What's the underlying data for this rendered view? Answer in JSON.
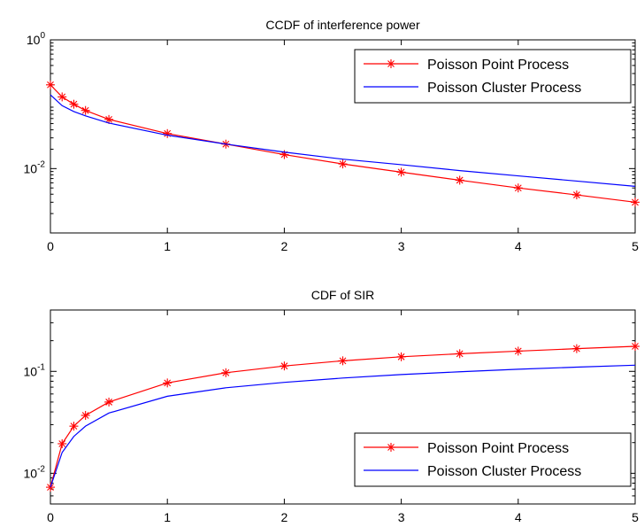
{
  "chart_data": [
    {
      "type": "line",
      "title": "CCDF of interference power",
      "xlabel": "",
      "ylabel": "",
      "xlim": [
        0,
        5
      ],
      "ylim": [
        0.001,
        1
      ],
      "yscale": "log",
      "grid": false,
      "legend_position": "top-right",
      "x_ticks": [
        "0",
        "1",
        "2",
        "3",
        "4",
        "5"
      ],
      "y_ticks": [
        {
          "base": "10",
          "exp": "0",
          "value": 1
        },
        {
          "base": "10",
          "exp": "-2",
          "value": 0.01
        }
      ],
      "series": [
        {
          "name": "Poisson Point Process",
          "color": "#ff0000",
          "marker": "asterisk",
          "x": [
            0,
            0.1,
            0.2,
            0.3,
            0.5,
            1.0,
            1.5,
            2.0,
            2.5,
            3.0,
            3.5,
            4.0,
            4.5,
            5.0
          ],
          "y": [
            0.2,
            0.13,
            0.1,
            0.08,
            0.058,
            0.035,
            0.024,
            0.0165,
            0.0118,
            0.0088,
            0.0066,
            0.005,
            0.0039,
            0.003
          ]
        },
        {
          "name": "Poisson Cluster Process",
          "color": "#0000ff",
          "marker": "none",
          "x": [
            0,
            0.1,
            0.2,
            0.3,
            0.5,
            1.0,
            1.5,
            2.0,
            2.5,
            3.0,
            3.5,
            4.0,
            4.5,
            5.0
          ],
          "y": [
            0.14,
            0.095,
            0.077,
            0.066,
            0.051,
            0.033,
            0.024,
            0.018,
            0.014,
            0.0115,
            0.0093,
            0.0077,
            0.0064,
            0.0053
          ]
        }
      ]
    },
    {
      "type": "line",
      "title": "CDF of SIR",
      "xlabel": "",
      "ylabel": "",
      "xlim": [
        0,
        5
      ],
      "ylim": [
        0.005,
        0.4
      ],
      "yscale": "log",
      "grid": false,
      "legend_position": "bottom-right",
      "x_ticks": [
        "0",
        "1",
        "2",
        "3",
        "4",
        "5"
      ],
      "y_ticks": [
        {
          "base": "10",
          "exp": "-1",
          "value": 0.1
        },
        {
          "base": "10",
          "exp": "-2",
          "value": 0.01
        }
      ],
      "series": [
        {
          "name": "Poisson Point Process",
          "color": "#ff0000",
          "marker": "asterisk",
          "x": [
            0,
            0.1,
            0.2,
            0.3,
            0.5,
            1.0,
            1.5,
            2.0,
            2.5,
            3.0,
            3.5,
            4.0,
            4.5,
            5.0
          ],
          "y": [
            0.0073,
            0.0195,
            0.029,
            0.037,
            0.05,
            0.077,
            0.097,
            0.113,
            0.127,
            0.139,
            0.149,
            0.158,
            0.167,
            0.176
          ]
        },
        {
          "name": "Poisson Cluster Process",
          "color": "#0000ff",
          "marker": "none",
          "x": [
            0,
            0.1,
            0.2,
            0.3,
            0.5,
            1.0,
            1.5,
            2.0,
            2.5,
            3.0,
            3.5,
            4.0,
            4.5,
            5.0
          ],
          "y": [
            0.0073,
            0.016,
            0.023,
            0.029,
            0.039,
            0.057,
            0.069,
            0.078,
            0.086,
            0.093,
            0.099,
            0.105,
            0.11,
            0.115
          ]
        }
      ]
    }
  ]
}
